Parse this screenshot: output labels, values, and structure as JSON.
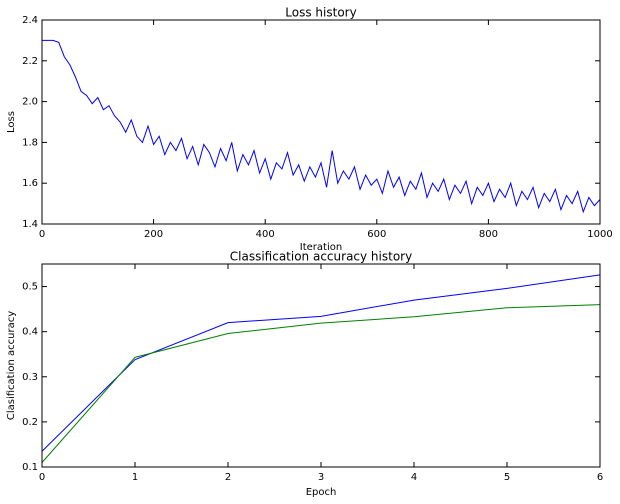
{
  "chart_data": [
    {
      "type": "line",
      "title": "Loss history",
      "xlabel": "Iteration",
      "ylabel": "Loss",
      "x": [
        0,
        10,
        20,
        30,
        40,
        50,
        60,
        70,
        80,
        90,
        100,
        110,
        120,
        130,
        140,
        150,
        160,
        170,
        180,
        190,
        200,
        210,
        220,
        230,
        240,
        250,
        260,
        270,
        280,
        290,
        300,
        310,
        320,
        330,
        340,
        350,
        360,
        370,
        380,
        390,
        400,
        410,
        420,
        430,
        440,
        450,
        460,
        470,
        480,
        490,
        500,
        510,
        520,
        530,
        540,
        550,
        560,
        570,
        580,
        590,
        600,
        610,
        620,
        630,
        640,
        650,
        660,
        670,
        680,
        690,
        700,
        710,
        720,
        730,
        740,
        750,
        760,
        770,
        780,
        790,
        800,
        810,
        820,
        830,
        840,
        850,
        860,
        870,
        880,
        890,
        900,
        910,
        920,
        930,
        940,
        950,
        960,
        970,
        980,
        990,
        1000
      ],
      "series": [
        {
          "color": "#0000ff",
          "values": [
            2.3,
            2.3,
            2.3,
            2.29,
            2.22,
            2.18,
            2.12,
            2.05,
            2.03,
            1.99,
            2.02,
            1.96,
            1.98,
            1.93,
            1.9,
            1.85,
            1.91,
            1.83,
            1.8,
            1.88,
            1.79,
            1.83,
            1.74,
            1.8,
            1.76,
            1.82,
            1.72,
            1.78,
            1.69,
            1.79,
            1.75,
            1.68,
            1.77,
            1.71,
            1.8,
            1.66,
            1.74,
            1.69,
            1.76,
            1.65,
            1.72,
            1.62,
            1.7,
            1.67,
            1.75,
            1.64,
            1.69,
            1.61,
            1.68,
            1.63,
            1.7,
            1.58,
            1.76,
            1.6,
            1.66,
            1.62,
            1.68,
            1.57,
            1.64,
            1.59,
            1.62,
            1.55,
            1.66,
            1.58,
            1.63,
            1.54,
            1.61,
            1.57,
            1.65,
            1.53,
            1.6,
            1.56,
            1.62,
            1.52,
            1.59,
            1.55,
            1.61,
            1.5,
            1.58,
            1.54,
            1.6,
            1.51,
            1.57,
            1.53,
            1.6,
            1.49,
            1.56,
            1.52,
            1.58,
            1.48,
            1.55,
            1.51,
            1.57,
            1.47,
            1.54,
            1.5,
            1.56,
            1.46,
            1.53,
            1.49,
            1.52
          ]
        }
      ],
      "xlim": [
        0,
        1000
      ],
      "xticks": [
        0,
        200,
        400,
        600,
        800,
        1000
      ],
      "ylim": [
        1.4,
        2.4
      ],
      "yticks": [
        1.4,
        1.6,
        1.8,
        {
          "value": 2,
          "label": "2.0"
        },
        2.2,
        2.4
      ]
    },
    {
      "type": "line",
      "title": "Classification accuracy history",
      "xlabel": "Epoch",
      "ylabel": "Clasification accuracy",
      "x": [
        0,
        1,
        2,
        3,
        4,
        5,
        6
      ],
      "series": [
        {
          "color": "#0000ff",
          "values": [
            0.135,
            0.338,
            0.42,
            0.434,
            0.47,
            0.496,
            0.526
          ]
        },
        {
          "color": "#008000",
          "values": [
            0.11,
            0.343,
            0.396,
            0.419,
            0.433,
            0.453,
            0.46
          ]
        }
      ],
      "xlim": [
        0,
        6
      ],
      "xticks": [
        0,
        1,
        2,
        3,
        4,
        5,
        6
      ],
      "ylim": [
        0.1,
        0.55
      ],
      "yticks": [
        0.1,
        0.2,
        0.3,
        0.4,
        0.5
      ]
    }
  ]
}
